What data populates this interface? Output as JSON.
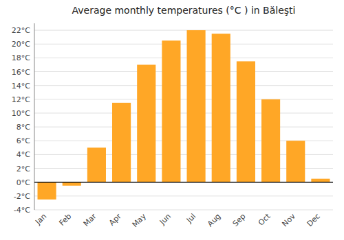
{
  "chart_data": {
    "type": "bar",
    "title": "Average monthly temperatures (°C ) in Băleşti",
    "categories": [
      "Jan",
      "Feb",
      "Mar",
      "Apr",
      "May",
      "Jun",
      "Jul",
      "Aug",
      "Sep",
      "Oct",
      "Nov",
      "Dec"
    ],
    "values": [
      -2.5,
      -0.5,
      5.0,
      11.5,
      17.0,
      20.5,
      22.0,
      21.5,
      17.5,
      12.0,
      6.0,
      0.5
    ],
    "color": "#FFA726",
    "ylim": [
      -4,
      23
    ],
    "yticks": [
      {
        "value": -4,
        "label": "-4°C"
      },
      {
        "value": -2,
        "label": "-2°C"
      },
      {
        "value": 0,
        "label": "0°C"
      },
      {
        "value": 2,
        "label": "2°C"
      },
      {
        "value": 4,
        "label": "4°C"
      },
      {
        "value": 6,
        "label": "6°C"
      },
      {
        "value": 8,
        "label": "8°C"
      },
      {
        "value": 10,
        "label": "10°C"
      },
      {
        "value": 12,
        "label": "12°C"
      },
      {
        "value": 14,
        "label": "14°C"
      },
      {
        "value": 16,
        "label": "16°C"
      },
      {
        "value": 18,
        "label": "18°C"
      },
      {
        "value": 20,
        "label": "20°C"
      },
      {
        "value": 22,
        "label": "22°C"
      }
    ],
    "grid": true
  }
}
